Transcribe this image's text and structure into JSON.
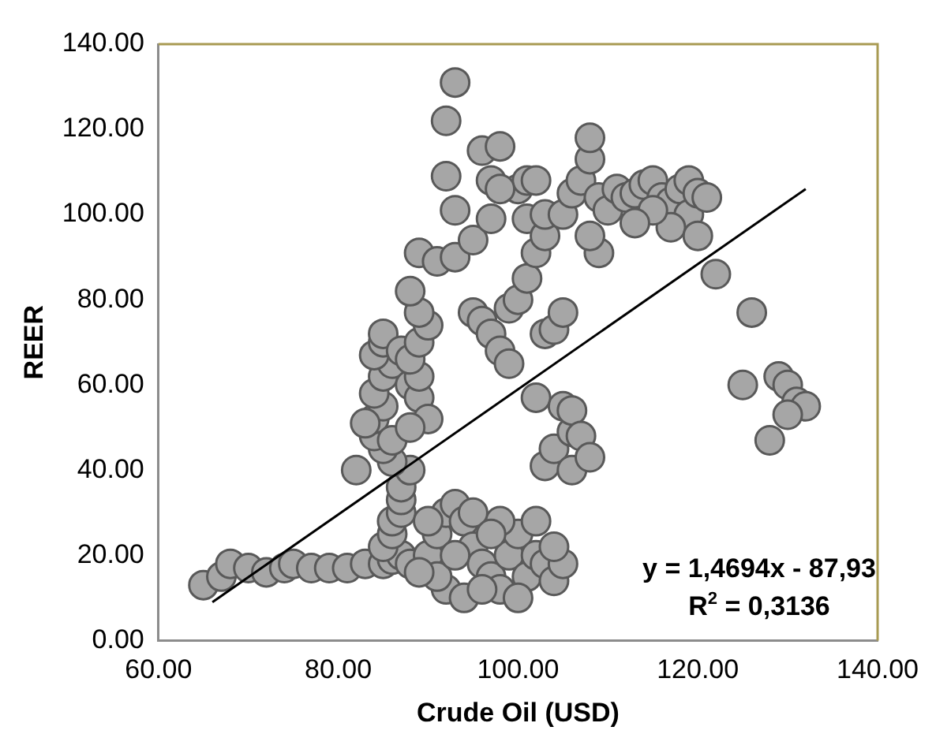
{
  "chart_data": {
    "type": "scatter",
    "xlabel": "Crude Oil (USD)",
    "ylabel": "REER",
    "xlim": [
      60,
      140
    ],
    "xticks": [
      {
        "value": 60,
        "label": "60.00"
      },
      {
        "value": 80,
        "label": "80.00"
      },
      {
        "value": 100,
        "label": "100.00"
      },
      {
        "value": 120,
        "label": "120.00"
      },
      {
        "value": 140,
        "label": "140.00"
      }
    ],
    "ylim": [
      0,
      140
    ],
    "yticks": [
      {
        "value": 0,
        "label": "0.00"
      },
      {
        "value": 20,
        "label": "20.00"
      },
      {
        "value": 40,
        "label": "40.00"
      },
      {
        "value": 60,
        "label": "60.00"
      },
      {
        "value": 80,
        "label": "80.00"
      },
      {
        "value": 100,
        "label": "100.00"
      },
      {
        "value": 120,
        "label": "120.00"
      },
      {
        "value": 140,
        "label": "140.00"
      }
    ],
    "grid": false,
    "legend": false,
    "marker": "circle",
    "series": [
      {
        "type": "scatter",
        "color": "#a6a6a6",
        "x": [
          65,
          67,
          68,
          70,
          72,
          74,
          75,
          77,
          79,
          81,
          83,
          85,
          86,
          87,
          85,
          86,
          86,
          87,
          87,
          87,
          88,
          86,
          85,
          84,
          84,
          85,
          84,
          85,
          86,
          84,
          85,
          85,
          87,
          88,
          89,
          89,
          88,
          89,
          90,
          89,
          88,
          89,
          91,
          93,
          92,
          92,
          93,
          95,
          96,
          98,
          97,
          93,
          90,
          86,
          88,
          82,
          83,
          88,
          90,
          91,
          92,
          93,
          94,
          95,
          96,
          97,
          98,
          99,
          100,
          101,
          102,
          103,
          104,
          92,
          94,
          96,
          98,
          90,
          91,
          93,
          95,
          97,
          100,
          102,
          105,
          89,
          104,
          95,
          96,
          97,
          98,
          99,
          99,
          100,
          101,
          100,
          101,
          102,
          101,
          102,
          103,
          103,
          97,
          98,
          103,
          104,
          102,
          103,
          105,
          104,
          106,
          106,
          106,
          107,
          108,
          105,
          105,
          106,
          107,
          108,
          108,
          109,
          109,
          108,
          110,
          111,
          112,
          113,
          114,
          115,
          116,
          117,
          118,
          119,
          117,
          119,
          120,
          121,
          122,
          126,
          125,
          128,
          129,
          130,
          131,
          132,
          130,
          115,
          113,
          120
        ],
        "values": [
          13,
          15,
          18,
          17,
          16,
          17,
          18,
          17,
          17,
          17,
          18,
          18,
          19,
          20,
          22,
          25,
          28,
          30,
          33,
          36,
          40,
          42,
          45,
          48,
          52,
          55,
          58,
          62,
          65,
          67,
          70,
          72,
          68,
          60,
          57,
          62,
          66,
          70,
          74,
          77,
          82,
          91,
          89,
          90,
          109,
          122,
          131,
          94,
          115,
          116,
          108,
          101,
          52,
          47,
          50,
          40,
          51,
          18,
          20,
          25,
          30,
          32,
          28,
          22,
          18,
          15,
          12,
          20,
          25,
          15,
          20,
          18,
          14,
          12,
          10,
          12,
          28,
          28,
          15,
          20,
          30,
          25,
          10,
          28,
          18,
          16,
          22,
          77,
          75,
          72,
          68,
          78,
          65,
          80,
          85,
          106,
          108,
          108,
          99,
          91,
          95,
          100,
          99,
          106,
          72,
          73,
          57,
          41,
          55,
          45,
          49,
          40,
          54,
          48,
          43,
          77,
          100,
          105,
          108,
          113,
          118,
          104,
          91,
          95,
          101,
          106,
          104,
          105,
          107,
          108,
          104,
          103,
          106,
          100,
          97,
          108,
          105,
          104,
          86,
          77,
          60,
          47,
          62,
          60,
          56,
          55,
          53,
          101,
          98,
          95
        ]
      },
      {
        "type": "line",
        "color": "#000000",
        "marker": "none",
        "x": [
          66,
          132
        ],
        "values": [
          9,
          106
        ]
      }
    ],
    "annotations": [
      "y = 1,4694x - 87,93",
      "R$^{2}$ = 0,3136"
    ]
  }
}
